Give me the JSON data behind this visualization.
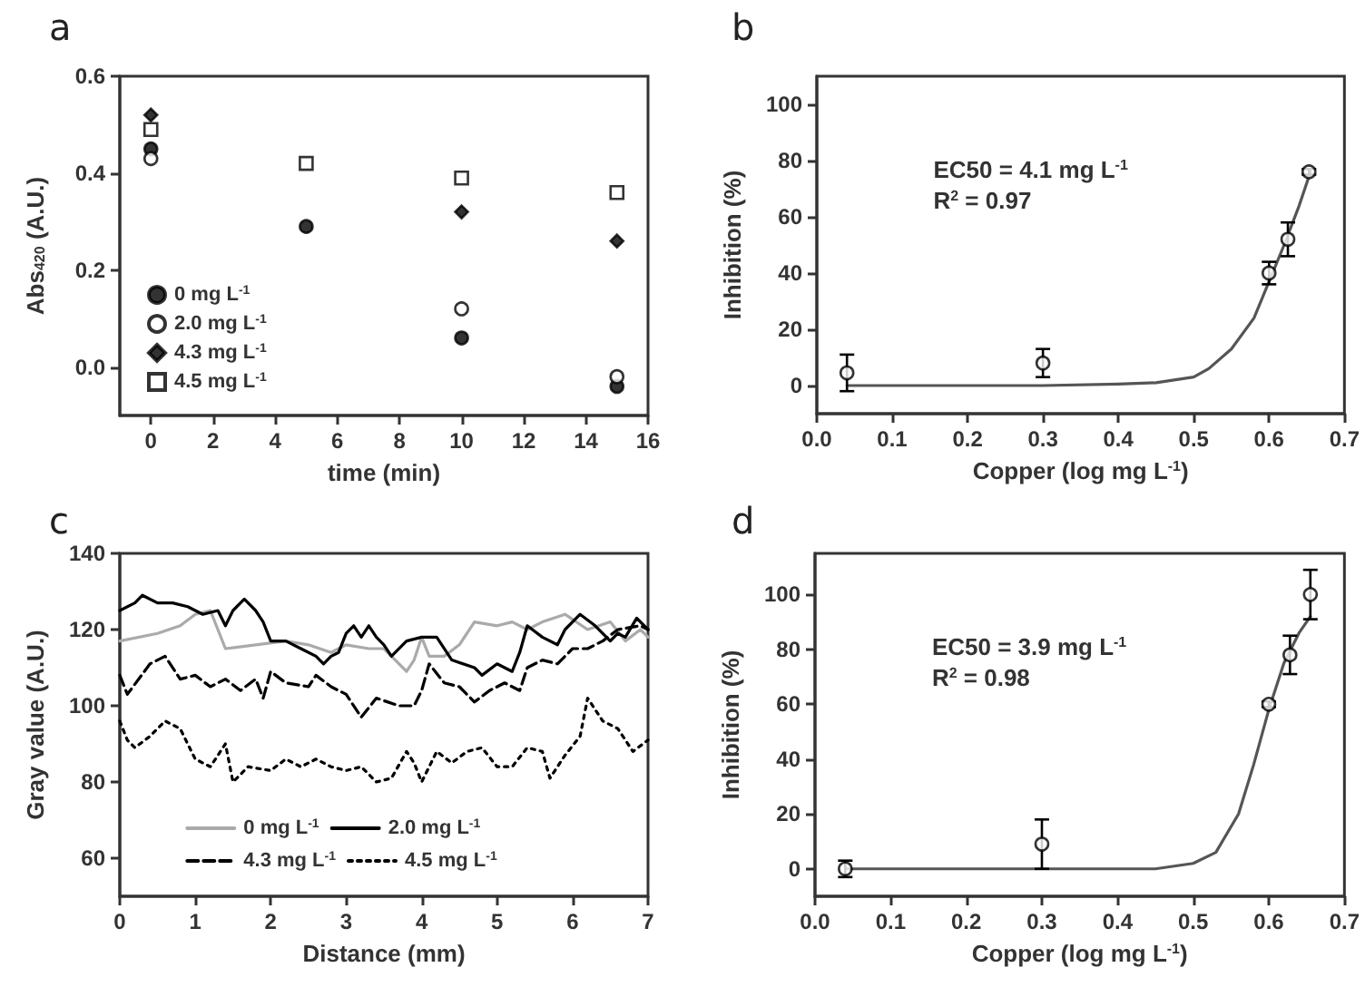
{
  "chart_data": [
    {
      "type": "scatter",
      "title": "a",
      "xlabel": "time (min)",
      "ylabel": "Abs$_{420}$ (A.U.)",
      "x": [
        0,
        5,
        10,
        15
      ],
      "xlim": [
        -1,
        16
      ],
      "xticks": [
        0,
        2,
        4,
        6,
        8,
        10,
        12,
        14,
        16
      ],
      "ylim": [
        -0.1,
        0.6
      ],
      "yticks": [
        {
          "value": 0,
          "label": "0.0"
        },
        {
          "value": 0.2,
          "label": "0.2"
        },
        {
          "value": 0.4,
          "label": "0.4"
        },
        {
          "value": 0.6,
          "label": "0.6"
        }
      ],
      "legend": "bottom left",
      "series": [
        {
          "name": "0 mg L$^{-1}$",
          "color": "#000000",
          "marker": "circle",
          "values": [
            0.45,
            0.29,
            0.06,
            -0.04
          ]
        },
        {
          "name": "2.0 mg L$^{-1}$",
          "color": "#ffffff",
          "marker": "circle",
          "values": [
            0.43,
            null,
            0.12,
            -0.02
          ]
        },
        {
          "name": "4.3 mg L$^{-1}$",
          "color": "#000000",
          "marker": "diamond",
          "values": [
            0.52,
            null,
            0.32,
            0.26
          ]
        },
        {
          "name": "4.5 mg L$^{-1}$",
          "color": "#ffffff",
          "marker": "square",
          "values": [
            0.49,
            0.42,
            0.39,
            0.36
          ]
        }
      ]
    },
    {
      "type": "scatter",
      "title": "b",
      "xlabel": "Copper (log mg L$^{-1}$)",
      "ylabel": "Inhibition (%)",
      "xlim": [
        0,
        0.7
      ],
      "xticks": [
        {
          "value": 0,
          "label": "0.0"
        },
        {
          "value": 0.1,
          "label": "0.1"
        },
        {
          "value": 0.2,
          "label": "0.2"
        },
        {
          "value": 0.3,
          "label": "0.3"
        },
        {
          "value": 0.4,
          "label": "0.4"
        },
        {
          "value": 0.5,
          "label": "0.5"
        },
        {
          "value": 0.6,
          "label": "0.6"
        },
        {
          "value": 0.7,
          "label": "0.7"
        }
      ],
      "ylim": [
        -10,
        110
      ],
      "yticks": [
        0,
        20,
        40,
        60,
        80,
        100
      ],
      "annotations": [
        "EC50 = 4.1 mg L$^{-1}$",
        "R$^{2}$ = 0.97"
      ],
      "series": [
        {
          "color": "#ffffff",
          "marker": "circle",
          "x": [
            0.04,
            0.3,
            0.6,
            0.625,
            0.653
          ],
          "values": [
            4.5,
            8,
            40,
            52,
            76
          ],
          "errors": [
            6.5,
            5,
            4,
            6,
            1
          ]
        },
        {
          "type": "line",
          "color": "#555555",
          "marker": "none",
          "x": [
            0.04,
            0.3,
            0.4,
            0.45,
            0.5,
            0.52,
            0.55,
            0.58,
            0.6,
            0.62,
            0.64,
            0.655
          ],
          "values": [
            0,
            0,
            0.5,
            1,
            3,
            6,
            13,
            24,
            37,
            50,
            64,
            76
          ]
        }
      ]
    },
    {
      "type": "line",
      "title": "c",
      "xlabel": "Distance (mm)",
      "ylabel": "Gray value (A.U.)",
      "xlim": [
        0,
        7
      ],
      "xticks": [
        0,
        1,
        2,
        3,
        4,
        5,
        6,
        7
      ],
      "ylim": [
        50,
        140
      ],
      "yticks": [
        60,
        80,
        100,
        120,
        140
      ],
      "legend": "bottom",
      "marker": "none",
      "series": [
        {
          "name": "0 mg L$^{-1}$",
          "color": "#aaaaaa",
          "line_style": "solid",
          "x": [
            0,
            0.5,
            0.8,
            1.0,
            1.2,
            1.4,
            1.8,
            2.2,
            2.5,
            2.8,
            3.0,
            3.3,
            3.5,
            3.8,
            3.9,
            4.0,
            4.1,
            4.3,
            4.5,
            4.7,
            5.0,
            5.2,
            5.4,
            5.6,
            5.9,
            6.2,
            6.5,
            6.7,
            6.9,
            7
          ],
          "values": [
            117,
            119,
            121,
            124,
            125,
            115,
            116,
            117,
            116,
            114,
            116,
            115,
            115,
            109,
            112,
            118,
            113,
            113,
            116,
            122,
            121,
            122,
            120,
            122,
            124,
            120,
            122,
            117,
            120,
            118
          ]
        },
        {
          "name": "2.0 mg L$^{-1}$",
          "color": "#000000",
          "line_style": "solid",
          "x": [
            0,
            0.2,
            0.3,
            0.5,
            0.7,
            0.9,
            1.1,
            1.3,
            1.4,
            1.5,
            1.65,
            1.8,
            1.9,
            2.0,
            2.2,
            2.4,
            2.6,
            2.7,
            2.8,
            2.9,
            3.0,
            3.1,
            3.2,
            3.3,
            3.4,
            3.5,
            3.6,
            3.8,
            4.0,
            4.2,
            4.4,
            4.7,
            4.8,
            5.0,
            5.2,
            5.3,
            5.4,
            5.6,
            5.8,
            5.9,
            6.1,
            6.3,
            6.5,
            6.6,
            6.7,
            6.85,
            7
          ],
          "values": [
            125,
            127,
            129,
            127,
            127,
            126,
            124,
            125,
            121,
            125,
            128,
            125,
            122,
            117,
            117,
            115,
            113,
            111,
            113,
            114,
            119,
            121,
            118,
            121,
            118,
            116,
            113,
            117,
            118,
            118,
            112,
            110,
            108,
            111,
            109,
            114,
            121,
            118,
            116,
            120,
            124,
            121,
            117,
            119,
            118,
            123,
            120
          ]
        },
        {
          "name": "4.3 mg L$^{-1}$",
          "color": "#000000",
          "line_style": "dashed",
          "x": [
            0,
            0.1,
            0.4,
            0.6,
            0.8,
            1.0,
            1.2,
            1.4,
            1.6,
            1.8,
            1.9,
            2.0,
            2.2,
            2.5,
            2.6,
            2.8,
            3.0,
            3.2,
            3.4,
            3.7,
            3.9,
            4.0,
            4.1,
            4.3,
            4.5,
            4.7,
            4.9,
            5.1,
            5.3,
            5.4,
            5.6,
            5.8,
            6.0,
            6.2,
            6.4,
            6.6,
            6.9,
            7
          ],
          "values": [
            108,
            103,
            111,
            113,
            107,
            108,
            105,
            107,
            104,
            107,
            102,
            109,
            106,
            105,
            108,
            105,
            103,
            97,
            102,
            100,
            100,
            104,
            111,
            106,
            105,
            101,
            104,
            106,
            104,
            110,
            112,
            111,
            115,
            115,
            117,
            120,
            121,
            120
          ]
        },
        {
          "name": "4.5 mg L$^{-1}$",
          "color": "#000000",
          "line_style": "dotted",
          "x": [
            0,
            0.1,
            0.2,
            0.4,
            0.6,
            0.8,
            1.0,
            1.2,
            1.4,
            1.5,
            1.7,
            2.0,
            2.2,
            2.4,
            2.6,
            2.8,
            3.0,
            3.2,
            3.4,
            3.6,
            3.8,
            3.9,
            4.0,
            4.2,
            4.4,
            4.6,
            4.8,
            5.0,
            5.2,
            5.4,
            5.6,
            5.7,
            5.9,
            6.1,
            6.2,
            6.4,
            6.6,
            6.8,
            7
          ],
          "values": [
            96,
            91,
            89,
            92,
            96,
            94,
            86,
            84,
            90,
            80,
            84,
            83,
            86,
            84,
            86,
            84,
            83,
            84,
            80,
            81,
            88,
            85,
            80,
            88,
            85,
            88,
            89,
            84,
            84,
            89,
            88,
            81,
            87,
            92,
            102,
            96,
            94,
            88,
            91
          ]
        }
      ]
    },
    {
      "type": "scatter",
      "title": "d",
      "xlabel": "Copper (log mg L$^{-1}$)",
      "ylabel": "Inhibition (%)",
      "xlim": [
        0,
        0.7
      ],
      "xticks": [
        {
          "value": 0,
          "label": "0.0"
        },
        {
          "value": 0.1,
          "label": "0.1"
        },
        {
          "value": 0.2,
          "label": "0.2"
        },
        {
          "value": 0.3,
          "label": "0.3"
        },
        {
          "value": 0.4,
          "label": "0.4"
        },
        {
          "value": 0.5,
          "label": "0.5"
        },
        {
          "value": 0.6,
          "label": "0.6"
        },
        {
          "value": 0.7,
          "label": "0.7"
        }
      ],
      "ylim": [
        -10,
        115
      ],
      "yticks": [
        0,
        20,
        40,
        60,
        80,
        100
      ],
      "annotations": [
        "EC50 = 3.9 mg L$^{-1}$",
        "R$^{2}$ = 0.98"
      ],
      "series": [
        {
          "color": "#ffffff",
          "marker": "circle",
          "x": [
            0.04,
            0.3,
            0.6,
            0.628,
            0.655
          ],
          "values": [
            0,
            9,
            60,
            78,
            100
          ],
          "errors": [
            3,
            9,
            1,
            7,
            9
          ]
        },
        {
          "type": "line",
          "color": "#555555",
          "marker": "none",
          "x": [
            0.04,
            0.3,
            0.45,
            0.5,
            0.53,
            0.56,
            0.58,
            0.6,
            0.62,
            0.64,
            0.655
          ],
          "values": [
            0,
            0,
            0,
            2,
            6,
            20,
            38,
            58,
            75,
            86,
            92
          ]
        }
      ]
    }
  ]
}
